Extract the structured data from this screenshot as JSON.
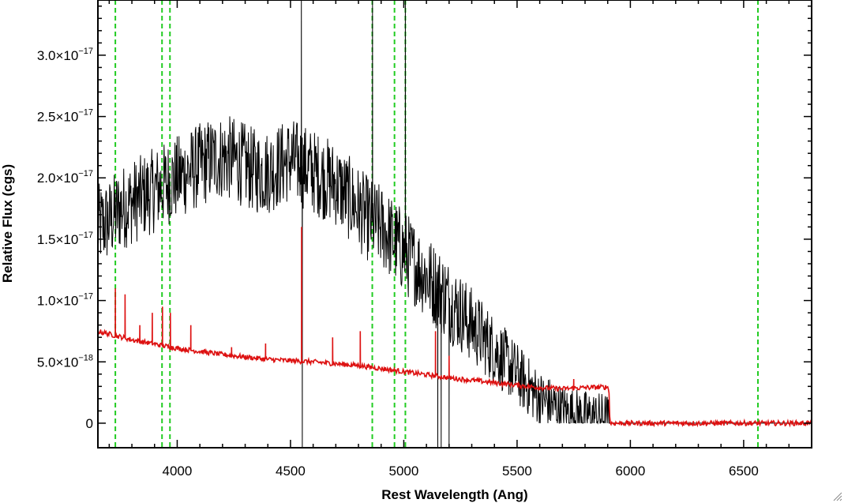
{
  "chart_data": {
    "type": "line",
    "xlabel": "Rest Wavelength (Ang)",
    "ylabel": "Relative Flux (cgs)",
    "xlim": [
      3650,
      6800
    ],
    "ylim": [
      -2e-18,
      3.45e-17
    ],
    "x_ticks": [
      {
        "value": 4000,
        "label": "4000"
      },
      {
        "value": 4500,
        "label": "4500"
      },
      {
        "value": 5000,
        "label": "5000"
      },
      {
        "value": 5500,
        "label": "5500"
      },
      {
        "value": 6000,
        "label": "6000"
      },
      {
        "value": 6500,
        "label": "6500"
      }
    ],
    "y_ticks": [
      {
        "value": 0,
        "mant": "0",
        "exp": ""
      },
      {
        "value": 5e-18,
        "mant": "5.0×10",
        "exp": "−18"
      },
      {
        "value": 1e-17,
        "mant": "1.0×10",
        "exp": "−17"
      },
      {
        "value": 1.5e-17,
        "mant": "1.5×10",
        "exp": "−17"
      },
      {
        "value": 2e-17,
        "mant": "2.0×10",
        "exp": "−17"
      },
      {
        "value": 2.5e-17,
        "mant": "2.5×10",
        "exp": "−17"
      },
      {
        "value": 3e-17,
        "mant": "3.0×10",
        "exp": "−17"
      }
    ],
    "colors": {
      "spectrum": "#000000",
      "error": "#dd1111",
      "line_markers": "#22cc22"
    },
    "line_markers": [
      3727,
      3933,
      3968,
      4861,
      4959,
      5007,
      6563
    ],
    "series": [
      {
        "role": "spectrum",
        "color": "#000000",
        "trend": {
          "x": [
            3650,
            3700,
            3750,
            3800,
            3850,
            3900,
            3950,
            4000,
            4050,
            4100,
            4150,
            4200,
            4250,
            4300,
            4350,
            4400,
            4450,
            4500,
            4550,
            4600,
            4650,
            4700,
            4750,
            4800,
            4850,
            4900,
            4950,
            5000,
            5050,
            5100,
            5150,
            5200,
            5250,
            5300,
            5350,
            5400,
            5450,
            5500,
            5550,
            5600,
            5650,
            5700,
            5750,
            5800,
            5850,
            5900,
            5905,
            5910,
            6800
          ],
          "y": [
            1.6e-17,
            1.65e-17,
            1.75e-17,
            1.8e-17,
            1.85e-17,
            1.9e-17,
            1.95e-17,
            2e-17,
            2.05e-17,
            2.1e-17,
            2.15e-17,
            2.17e-17,
            2.15e-17,
            2.1e-17,
            2.05e-17,
            2.05e-17,
            2.1e-17,
            2.15e-17,
            2.1e-17,
            2.05e-17,
            2e-17,
            1.95e-17,
            1.85e-17,
            1.75e-17,
            1.65e-17,
            1.6e-17,
            1.5e-17,
            1.4e-17,
            1.3e-17,
            1.2e-17,
            1.1e-17,
            1e-17,
            9e-18,
            8e-18,
            7e-18,
            6e-18,
            5e-18,
            4e-18,
            3e-18,
            2e-18,
            1.5e-18,
            1e-18,
            8e-19,
            6e-19,
            5e-19,
            4e-19,
            0,
            0,
            0
          ]
        },
        "noise_amplitude": 3.5e-18,
        "spikes": [
          {
            "x": 4548,
            "y": 3.6e-17
          },
          {
            "x": 4552,
            "y": -5e-18
          },
          {
            "x": 4862,
            "y": 3.6e-17
          },
          {
            "x": 5007,
            "y": 3.6e-17
          },
          {
            "x": 5150,
            "y": -3e-18
          },
          {
            "x": 5165,
            "y": -3e-18
          },
          {
            "x": 5200,
            "y": -2e-18
          }
        ]
      },
      {
        "role": "error",
        "color": "#dd1111",
        "trend": {
          "x": [
            3650,
            3800,
            4000,
            4200,
            4400,
            4600,
            4800,
            5000,
            5200,
            5400,
            5600,
            5700,
            5800,
            5900,
            5905,
            5910,
            6800
          ],
          "y": [
            7.5e-18,
            6.8e-18,
            6.1e-18,
            5.6e-18,
            5.2e-18,
            5e-18,
            4.7e-18,
            4.2e-18,
            3.7e-18,
            3.3e-18,
            2.9e-18,
            2.8e-18,
            2.9e-18,
            2.95e-18,
            2.95e-18,
            0,
            0
          ]
        },
        "spikes": [
          {
            "x": 3727,
            "y": 1.1e-17
          },
          {
            "x": 3770,
            "y": 1.05e-17
          },
          {
            "x": 3835,
            "y": 8e-18
          },
          {
            "x": 3890,
            "y": 9e-18
          },
          {
            "x": 3935,
            "y": 9.5e-18
          },
          {
            "x": 3970,
            "y": 9e-18
          },
          {
            "x": 4060,
            "y": 8e-18
          },
          {
            "x": 4240,
            "y": 6.2e-18
          },
          {
            "x": 4390,
            "y": 6.5e-18
          },
          {
            "x": 4549,
            "y": 1.6e-17
          },
          {
            "x": 4686,
            "y": 7e-18
          },
          {
            "x": 4808,
            "y": 7.5e-18
          },
          {
            "x": 5140,
            "y": 7.5e-18
          },
          {
            "x": 5200,
            "y": 5.5e-18
          },
          {
            "x": 5750,
            "y": 3.6e-18
          }
        ]
      }
    ]
  }
}
